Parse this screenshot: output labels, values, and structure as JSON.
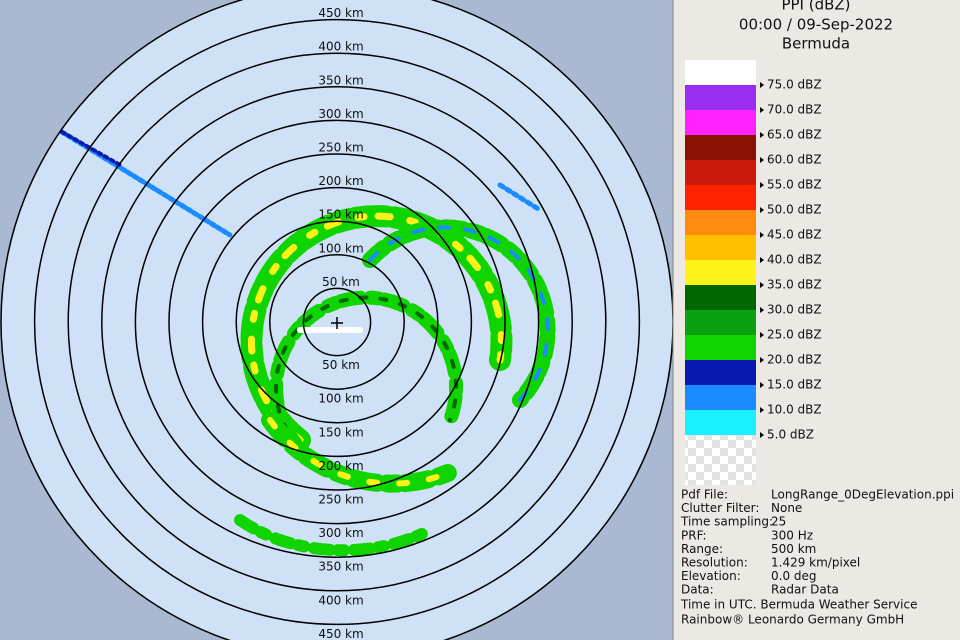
{
  "header": {
    "lines": [
      "PPI (dBZ)",
      "00:00 / 09-Sep-2022",
      "Bermuda"
    ]
  },
  "rings": [
    "50 km",
    "100 km",
    "150 km",
    "200 km",
    "250 km",
    "300 km",
    "350 km",
    "400 km",
    "450 km"
  ],
  "legend": [
    {
      "label": "75.0 dBZ",
      "color": "#ffffff"
    },
    {
      "label": "70.0 dBZ",
      "color": "#9a2ef0"
    },
    {
      "label": "65.0 dBZ",
      "color": "#ff22ff"
    },
    {
      "label": "60.0 dBZ",
      "color": "#8a1200"
    },
    {
      "label": "55.0 dBZ",
      "color": "#cc1a0a"
    },
    {
      "label": "50.0 dBZ",
      "color": "#ff2200"
    },
    {
      "label": "45.0 dBZ",
      "color": "#ff8a10"
    },
    {
      "label": "40.0 dBZ",
      "color": "#ffc000"
    },
    {
      "label": "35.0 dBZ",
      "color": "#fff21a"
    },
    {
      "label": "30.0 dBZ",
      "color": "#006600"
    },
    {
      "label": "25.0 dBZ",
      "color": "#0aa010"
    },
    {
      "label": "20.0 dBZ",
      "color": "#10d400"
    },
    {
      "label": "15.0 dBZ",
      "color": "#0a1ab0"
    },
    {
      "label": "10.0 dBZ",
      "color": "#1a8cff"
    },
    {
      "label": "5.0 dBZ",
      "color": "#1af0ff"
    }
  ],
  "info": [
    [
      "Pdf File:",
      "LongRange_0DegElevation.ppi"
    ],
    [
      "Clutter Filter:",
      "None"
    ],
    [
      "Time sampling:",
      "25"
    ],
    [
      "PRF:",
      "300 Hz"
    ],
    [
      "Range:",
      "500 km"
    ],
    [
      "Resolution:",
      "1.429 km/pixel"
    ],
    [
      "Elevation:",
      "0.0 deg"
    ],
    [
      "Data:",
      "Radar Data"
    ]
  ],
  "footer": [
    "Time in UTC. Bermuda Weather Service",
    "Rainbow® Leonardo Germany GmbH"
  ]
}
